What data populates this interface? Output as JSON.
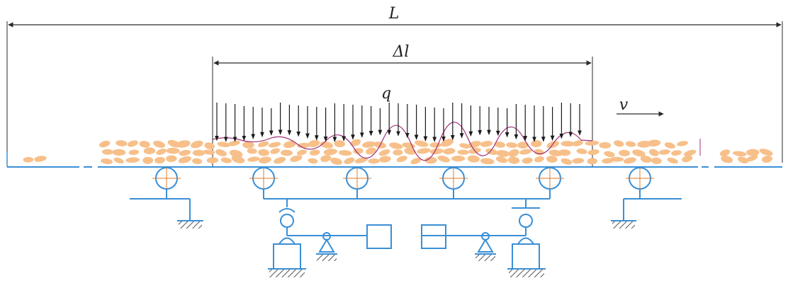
{
  "labels": {
    "total_length": "L",
    "section_length": "Δl",
    "load": "q",
    "speed": "v"
  },
  "colors": {
    "dimension": "#2a2a2a",
    "load_arrows": "#1a1a1a",
    "belt": "#3a8fd6",
    "structure": "#3a8fd6",
    "pellets": "#f7c08a",
    "load_profile": "#a0307a",
    "ground_hatch": "#555555",
    "roller_mark": "#e07b2a"
  },
  "icons": {
    "idler": "idler-roller-icon",
    "ground": "ground-hatch-icon",
    "load_cell": "load-cell-icon",
    "signal_box": "signal-box-icon"
  }
}
